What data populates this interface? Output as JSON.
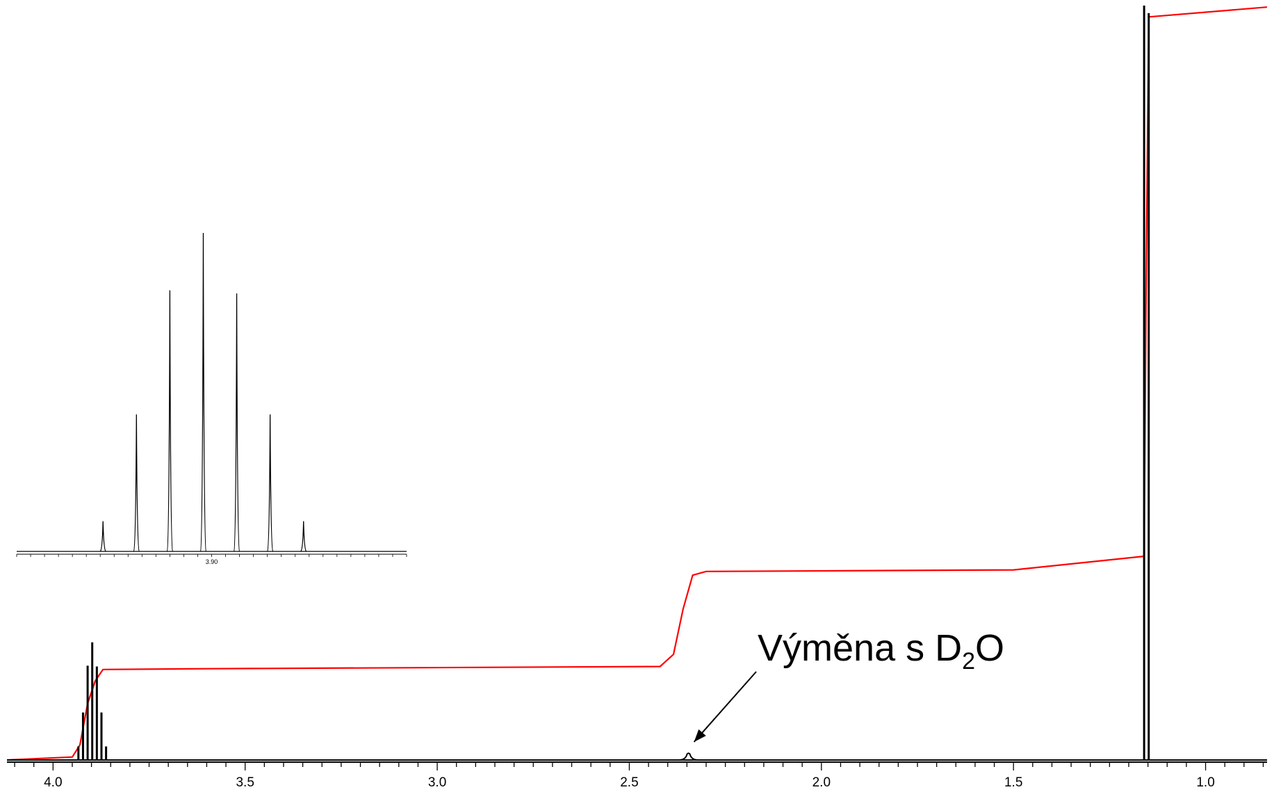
{
  "chart_data": {
    "type": "line",
    "title": "",
    "xlabel": "",
    "ylabel": "",
    "x_axis": {
      "reversed": true,
      "range": [
        4.12,
        0.84
      ],
      "tick_labels": [
        "4.0",
        "3.5",
        "3.0",
        "2.5",
        "2.0",
        "1.5",
        "1.0"
      ],
      "tick_values": [
        4.0,
        3.5,
        3.0,
        2.5,
        2.0,
        1.5,
        1.0
      ],
      "minor_tick_step": 0.05
    },
    "grid": false,
    "legend": "none",
    "colors": {
      "spectrum": "#000000",
      "integral": "#ff0000",
      "axis": "#000000"
    },
    "series": [
      {
        "role": "spectrum",
        "peaks": [
          {
            "ppm": 3.934,
            "height": 0.018
          },
          {
            "ppm": 3.922,
            "height": 0.063
          },
          {
            "ppm": 3.91,
            "height": 0.125
          },
          {
            "ppm": 3.898,
            "height": 0.156
          },
          {
            "ppm": 3.886,
            "height": 0.124
          },
          {
            "ppm": 3.874,
            "height": 0.063
          },
          {
            "ppm": 3.862,
            "height": 0.018
          },
          {
            "ppm": 2.346,
            "height": 0.008,
            "broad": true
          },
          {
            "ppm": 1.16,
            "height": 1.0
          },
          {
            "ppm": 1.148,
            "height": 0.99
          }
        ]
      },
      {
        "role": "integral",
        "points": [
          [
            4.12,
            0.0
          ],
          [
            3.95,
            0.004
          ],
          [
            3.93,
            0.02
          ],
          [
            3.91,
            0.075
          ],
          [
            3.89,
            0.105
          ],
          [
            3.87,
            0.12
          ],
          [
            3.6,
            0.121
          ],
          [
            2.42,
            0.124
          ],
          [
            2.385,
            0.14
          ],
          [
            2.36,
            0.2
          ],
          [
            2.335,
            0.245
          ],
          [
            2.3,
            0.25
          ],
          [
            1.5,
            0.252
          ],
          [
            1.16,
            0.27
          ],
          [
            1.155,
            0.62
          ],
          [
            1.148,
            0.985
          ],
          [
            0.84,
            0.998
          ]
        ]
      }
    ],
    "annotations": [
      {
        "text_main": "Výměna s D",
        "text_sub": "2",
        "text_tail": "O",
        "points_to_ppm": 2.346
      }
    ],
    "inset": {
      "type": "line",
      "x_range": [
        3.965,
        3.825
      ],
      "tick_label": "3.90",
      "tick_label_value": 3.895,
      "minor_tick_step": 0.005,
      "peaks": [
        {
          "ppm": 3.934,
          "height": 0.095
        },
        {
          "ppm": 3.922,
          "height": 0.43
        },
        {
          "ppm": 3.91,
          "height": 0.82
        },
        {
          "ppm": 3.898,
          "height": 1.0
        },
        {
          "ppm": 3.886,
          "height": 0.81
        },
        {
          "ppm": 3.874,
          "height": 0.43
        },
        {
          "ppm": 3.862,
          "height": 0.095
        }
      ]
    }
  }
}
